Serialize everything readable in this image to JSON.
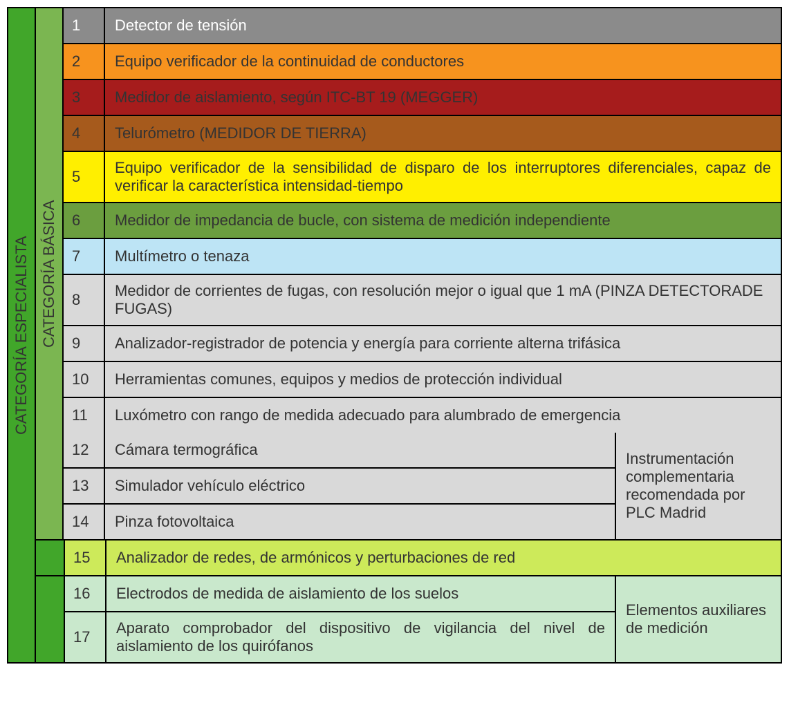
{
  "labels": {
    "especialista": "CATEGORÍA ESPECIALISTA",
    "basica": "CATEGORÍA BÁSICA"
  },
  "colors": {
    "especialista_bg": "#41a62a",
    "basica_bg": "#7bb651",
    "border": "#000000",
    "text_dark": "#333333",
    "text_light": "#ffffff"
  },
  "rows": [
    {
      "num": "1",
      "text": "Detector de tensión",
      "num_bg": "#8b8b8b",
      "num_fg": "#ffffff",
      "desc_bg": "#8b8b8b",
      "desc_fg": "#ffffff"
    },
    {
      "num": "2",
      "text": "Equipo verificador de la continuidad de conductores",
      "num_bg": "#f7931e",
      "num_fg": "#333333",
      "desc_bg": "#f7931e",
      "desc_fg": "#333333"
    },
    {
      "num": "3",
      "text": "Medidor de aislamiento, según ITC-BT 19 (MEGGER)",
      "num_bg": "#a61c1c",
      "num_fg": "#333333",
      "desc_bg": "#a61c1c",
      "desc_fg": "#333333"
    },
    {
      "num": "4",
      "text": "Telurómetro (MEDIDOR DE TIERRA)",
      "num_bg": "#a65a1c",
      "num_fg": "#333333",
      "desc_bg": "#a65a1c",
      "desc_fg": "#333333"
    },
    {
      "num": "5",
      "text": "Equipo verificador de la sensibilidad de disparo de los interruptores diferenciales, capaz de verificar la característica intensidad-tiempo",
      "num_bg": "#ffef00",
      "num_fg": "#333333",
      "desc_bg": "#ffef00",
      "desc_fg": "#333333",
      "justify": true
    },
    {
      "num": "6",
      "text": "Medidor de impedancia de bucle, con sistema de medición independiente",
      "num_bg": "#6b9e3f",
      "num_fg": "#333333",
      "desc_bg": "#6b9e3f",
      "desc_fg": "#333333"
    },
    {
      "num": "7",
      "text": "Multímetro o tenaza",
      "num_bg": "#bde4f5",
      "num_fg": "#333333",
      "desc_bg": "#bde4f5",
      "desc_fg": "#333333"
    },
    {
      "num": "8",
      "text": "Medidor de corrientes de fugas, con resolución mejor o igual que 1 mA (PINZA DETECTORADE FUGAS)",
      "num_bg": "#d9d9d9",
      "num_fg": "#333333",
      "desc_bg": "#d9d9d9",
      "desc_fg": "#333333"
    },
    {
      "num": "9",
      "text": "Analizador-registrador de potencia y energía para corriente alterna trifásica",
      "num_bg": "#d9d9d9",
      "num_fg": "#333333",
      "desc_bg": "#d9d9d9",
      "desc_fg": "#333333"
    },
    {
      "num": "10",
      "text": "Herramientas comunes, equipos y medios de protección individual",
      "num_bg": "#d9d9d9",
      "num_fg": "#333333",
      "desc_bg": "#d9d9d9",
      "desc_fg": "#333333"
    },
    {
      "num": "11",
      "text": "Luxómetro con rango de medida adecuado para alumbrado de emergencia",
      "num_bg": "#d9d9d9",
      "num_fg": "#333333",
      "desc_bg": "#d9d9d9",
      "desc_fg": "#333333"
    }
  ],
  "group1": {
    "side_text": "Instrumentación complementaria recomendada por PLC Madrid",
    "side_bg": "#d9d9d9",
    "rows": [
      {
        "num": "12",
        "text": "Cámara termográfica",
        "num_bg": "#d9d9d9",
        "desc_bg": "#d9d9d9"
      },
      {
        "num": "13",
        "text": "Simulador vehículo eléctrico",
        "num_bg": "#d9d9d9",
        "desc_bg": "#d9d9d9"
      },
      {
        "num": "14",
        "text": "Pinza fotovoltaica",
        "num_bg": "#d9d9d9",
        "desc_bg": "#d9d9d9"
      }
    ]
  },
  "row15": {
    "num": "15",
    "text": "Analizador de redes, de armónicos y perturbaciones de red",
    "num_bg": "#cdea5a",
    "desc_bg": "#cdea5a"
  },
  "group2": {
    "side_text": "Elementos auxiliares de medición",
    "side_bg": "#c9e8cc",
    "rows": [
      {
        "num": "16",
        "text": "Electrodos de medida de aislamiento de los suelos",
        "num_bg": "#c9e8cc",
        "desc_bg": "#c9e8cc"
      },
      {
        "num": "17",
        "text": "Aparato comprobador del dispositivo de vigilancia del nivel de aislamiento de los quirófanos",
        "num_bg": "#c9e8cc",
        "desc_bg": "#c9e8cc",
        "justify": true
      }
    ]
  }
}
